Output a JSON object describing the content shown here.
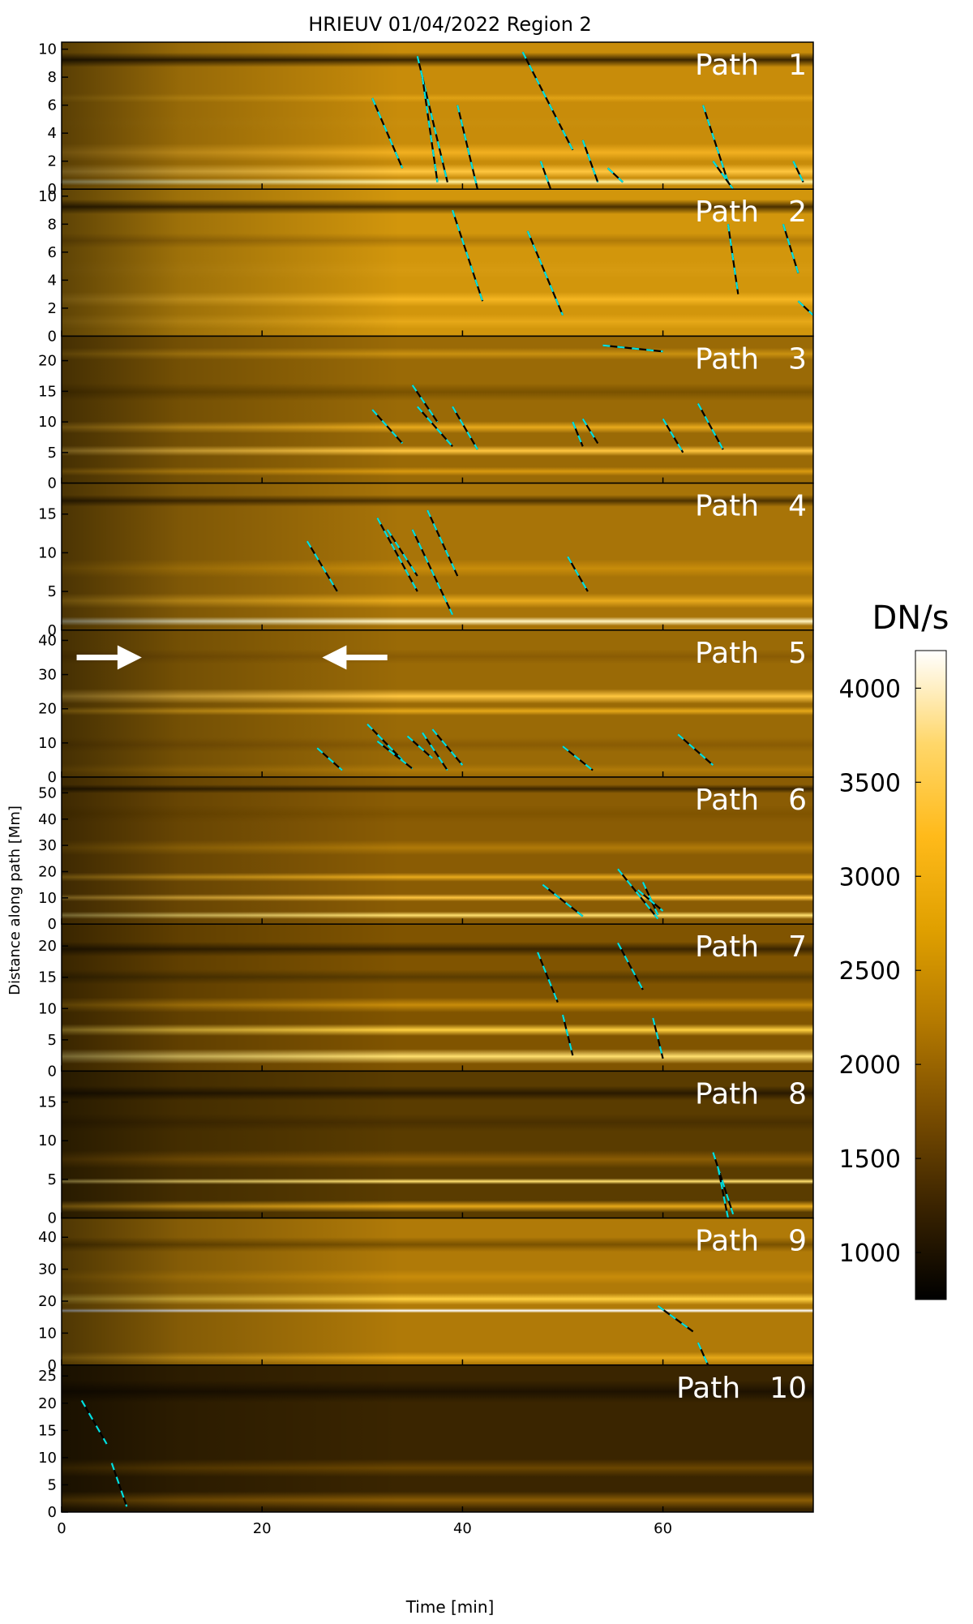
{
  "chart_data": {
    "type": "heatmap",
    "title": "HRIEUV 01/04/2022   Region 2",
    "xlabel": "Time [min]",
    "ylabel": "Distance along path [Mm]",
    "xlim": [
      0,
      75
    ],
    "xticks": [
      0,
      20,
      40,
      60
    ],
    "colorbar": {
      "label": "DN/s",
      "range": [
        750,
        4200
      ],
      "ticks": [
        1000,
        1500,
        2000,
        2500,
        3000,
        3500,
        4000
      ],
      "colors": [
        "#000000",
        "#3a2300",
        "#7a4d00",
        "#b57a00",
        "#e0a000",
        "#ffba1a",
        "#ffd76a",
        "#ffffff"
      ]
    },
    "annotation_colors": {
      "tracks_light": "#00e0e0",
      "tracks_dark": "#000000",
      "arrows": "#ffffff"
    },
    "panels": [
      {
        "name": "Path 1",
        "ylim": [
          0,
          10.5
        ],
        "yticks": [
          0,
          2,
          4,
          6,
          8,
          10
        ],
        "tracks": [
          [
            31,
            6.5,
            34,
            1.5
          ],
          [
            35.5,
            9.5,
            38.5,
            0.5
          ],
          [
            36,
            8,
            37.5,
            0.5
          ],
          [
            39.5,
            6,
            41.5,
            0
          ],
          [
            46,
            9.8,
            51,
            2.8
          ],
          [
            47.8,
            2,
            48.8,
            0
          ],
          [
            52,
            3.5,
            53.5,
            0.5
          ],
          [
            54.5,
            1.5,
            56,
            0.5
          ],
          [
            64,
            6,
            66.5,
            0.5
          ],
          [
            65,
            2,
            67,
            0
          ],
          [
            73,
            2,
            74,
            0.5
          ]
        ]
      },
      {
        "name": "Path 2",
        "ylim": [
          0,
          10.5
        ],
        "yticks": [
          0,
          2,
          4,
          6,
          8,
          10
        ],
        "tracks": [
          [
            39,
            9,
            42,
            2.5
          ],
          [
            46.5,
            7.5,
            50,
            1.5
          ],
          [
            66.5,
            8,
            67.5,
            3
          ],
          [
            72,
            8,
            73.5,
            4.5
          ],
          [
            73.5,
            2.5,
            75,
            1.5
          ]
        ]
      },
      {
        "name": "Path 3",
        "ylim": [
          0,
          24
        ],
        "yticks": [
          0,
          5,
          10,
          15,
          20
        ],
        "tracks": [
          [
            54,
            22.5,
            60,
            21.5
          ],
          [
            31,
            12,
            34,
            6.5
          ],
          [
            35,
            16,
            37.5,
            10
          ],
          [
            35.5,
            12.5,
            39,
            6
          ],
          [
            39,
            12.5,
            41.5,
            5.5
          ],
          [
            51,
            10,
            52,
            6
          ],
          [
            52,
            10.5,
            53.5,
            6.5
          ],
          [
            60,
            10.5,
            62,
            5
          ],
          [
            63.5,
            13,
            66,
            5.5
          ]
        ]
      },
      {
        "name": "Path 4",
        "ylim": [
          0,
          19
        ],
        "yticks": [
          0,
          5,
          10,
          15
        ],
        "tracks": [
          [
            24.5,
            11.5,
            27.5,
            5
          ],
          [
            31.5,
            14.5,
            35.5,
            5
          ],
          [
            32.5,
            13,
            35.5,
            7
          ],
          [
            35,
            13,
            39,
            2
          ],
          [
            36.5,
            15.5,
            39.5,
            7
          ],
          [
            50.5,
            9.5,
            52.5,
            5
          ]
        ]
      },
      {
        "name": "Path 5",
        "ylim": [
          0,
          43
        ],
        "yticks": [
          0,
          10,
          20,
          30,
          40
        ],
        "tracks": [
          [
            25.5,
            8.5,
            28,
            2
          ],
          [
            30.5,
            15.5,
            34,
            5
          ],
          [
            31.5,
            10.5,
            35,
            2.5
          ],
          [
            34.5,
            12,
            37,
            5.5
          ],
          [
            36,
            13,
            38.5,
            2
          ],
          [
            37,
            14,
            40,
            3.5
          ],
          [
            50,
            9,
            53,
            2
          ],
          [
            61.5,
            12.5,
            65,
            3.5
          ]
        ]
      },
      {
        "name": "Path 6",
        "ylim": [
          0,
          56
        ],
        "yticks": [
          0,
          10,
          20,
          30,
          40,
          50
        ],
        "tracks": [
          [
            48,
            15,
            52,
            3
          ],
          [
            55.5,
            21,
            59.5,
            2
          ],
          [
            58,
            16,
            59.5,
            3.5
          ],
          [
            57.5,
            13,
            60,
            5
          ]
        ]
      },
      {
        "name": "Path 7",
        "ylim": [
          0,
          23.5
        ],
        "yticks": [
          0,
          5,
          10,
          15,
          20
        ],
        "tracks": [
          [
            47.5,
            19,
            49.5,
            11
          ],
          [
            50,
            9,
            51,
            2.5
          ],
          [
            55.5,
            20.5,
            58,
            13
          ],
          [
            59,
            8.5,
            60,
            2
          ]
        ]
      },
      {
        "name": "Path 8",
        "ylim": [
          0,
          19
        ],
        "yticks": [
          0,
          5,
          10,
          15
        ],
        "tracks": [
          [
            65,
            8.5,
            67,
            0.5
          ],
          [
            65.5,
            6.5,
            66.5,
            0
          ]
        ]
      },
      {
        "name": "Path 9",
        "ylim": [
          0,
          46
        ],
        "yticks": [
          0,
          10,
          20,
          30,
          40
        ],
        "tracks": [
          [
            59.5,
            18.5,
            63,
            10.5
          ],
          [
            63.5,
            7,
            64.5,
            0
          ]
        ]
      },
      {
        "name": "Path 10",
        "ylim": [
          0,
          27
        ],
        "yticks": [
          0,
          5,
          10,
          15,
          20,
          25
        ],
        "tracks": [
          [
            2,
            20.5,
            4.5,
            12.5
          ],
          [
            5,
            9,
            6.5,
            1
          ]
        ]
      }
    ],
    "arrows": [
      {
        "panel": 4,
        "from": [
          1.5,
          35
        ],
        "to": [
          8,
          35
        ]
      },
      {
        "panel": 4,
        "from": [
          32.5,
          35
        ],
        "to": [
          26,
          35
        ]
      }
    ]
  }
}
